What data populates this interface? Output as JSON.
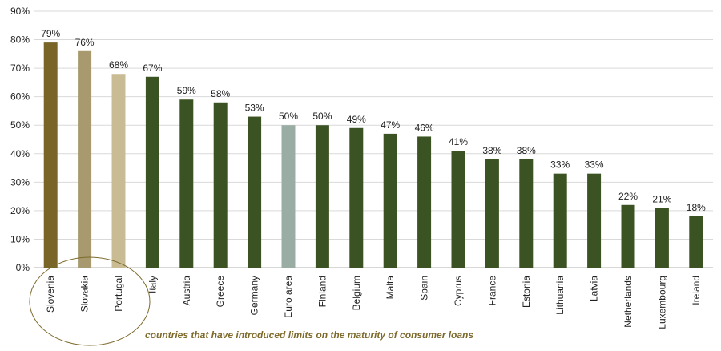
{
  "chart_data": {
    "type": "bar",
    "categories": [
      "Slovenia",
      "Slovakia",
      "Portugal",
      "Italy",
      "Austria",
      "Greece",
      "Germany",
      "Euro area",
      "Finland",
      "Belgium",
      "Malta",
      "Spain",
      "Cyprus",
      "France",
      "Estonia",
      "Lithuania",
      "Latvia",
      "Netherlands",
      "Luxembourg",
      "Ireland"
    ],
    "values": [
      79,
      76,
      68,
      67,
      59,
      58,
      53,
      50,
      50,
      49,
      47,
      46,
      41,
      38,
      38,
      33,
      33,
      22,
      21,
      18
    ],
    "value_labels": [
      "79%",
      "76%",
      "68%",
      "67%",
      "59%",
      "58%",
      "53%",
      "50%",
      "50%",
      "49%",
      "47%",
      "46%",
      "41%",
      "38%",
      "38%",
      "33%",
      "33%",
      "22%",
      "21%",
      "18%"
    ],
    "bar_colors": [
      "#7a6528",
      "#a89a6e",
      "#c9bc94",
      "#3b5323",
      "#3b5323",
      "#3b5323",
      "#3b5323",
      "#9aada4",
      "#3b5323",
      "#3b5323",
      "#3b5323",
      "#3b5323",
      "#3b5323",
      "#3b5323",
      "#3b5323",
      "#3b5323",
      "#3b5323",
      "#3b5323",
      "#3b5323",
      "#3b5323"
    ],
    "title": "",
    "xlabel": "",
    "ylabel": "",
    "ylim": [
      0,
      90
    ],
    "yticks": [
      "0%",
      "10%",
      "20%",
      "30%",
      "40%",
      "50%",
      "60%",
      "70%",
      "80%",
      "90%"
    ],
    "grid": true,
    "annotation": {
      "text": "countries that have introduced limits on the maturity of consumer loans",
      "highlighted_categories": [
        "Slovenia",
        "Slovakia",
        "Portugal"
      ],
      "color": "#7d6a2b"
    }
  }
}
